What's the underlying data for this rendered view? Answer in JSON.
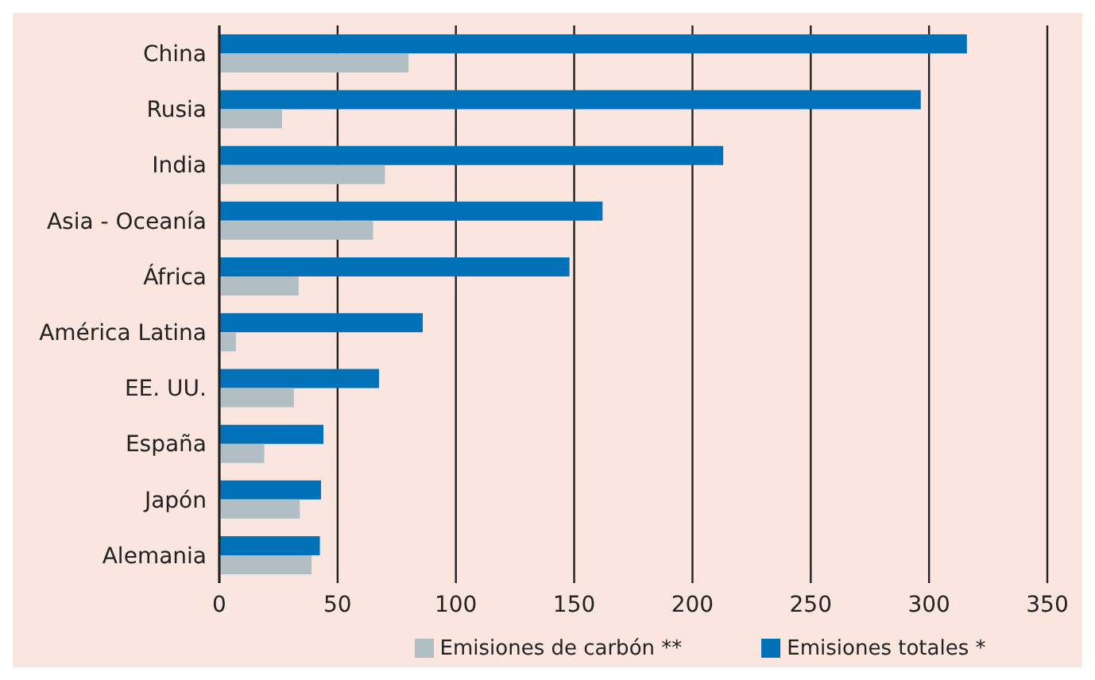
{
  "chart_data": {
    "type": "bar",
    "orientation": "horizontal",
    "categories": [
      "China",
      "Rusia",
      "India",
      "Asia - Oceanía",
      "África",
      "América Latina",
      "EE. UU.",
      "España",
      "Japón",
      "Alemania"
    ],
    "series": [
      {
        "name": "Emisiones totales *",
        "color": "#0070b8",
        "values": [
          316,
          296.5,
          213,
          162,
          148,
          86,
          67.5,
          44,
          43,
          42.5
        ]
      },
      {
        "name": "Emisiones de carbón **",
        "color": "#b1bec3",
        "values": [
          80,
          26.5,
          70,
          65,
          33.5,
          7,
          31.5,
          19,
          34,
          39
        ]
      }
    ],
    "xlim": [
      0,
      350
    ],
    "xticks": [
      0,
      50,
      100,
      150,
      200,
      250,
      300,
      350
    ],
    "grid": "x",
    "legend": "bottom"
  }
}
